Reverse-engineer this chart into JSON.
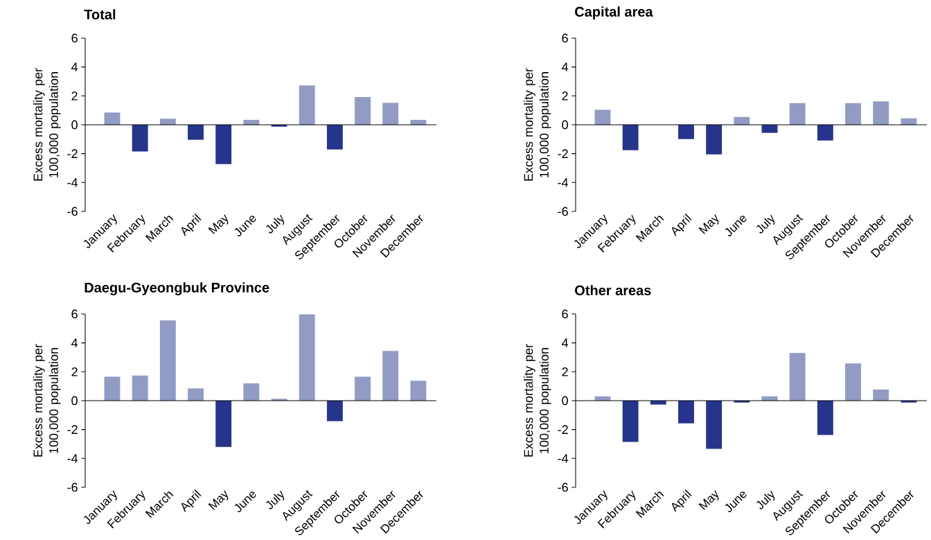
{
  "chart_data": [
    {
      "type": "bar",
      "title": "Total",
      "ylabel": "Excess mortality per 100,000 population",
      "categories": [
        "January",
        "February",
        "March",
        "April",
        "May",
        "June",
        "July",
        "August",
        "September",
        "October",
        "November",
        "December"
      ],
      "values": [
        0.85,
        -1.85,
        0.42,
        -1.04,
        -2.72,
        0.34,
        -0.13,
        2.72,
        -1.71,
        1.92,
        1.52,
        0.34
      ],
      "colors": [
        "#929bc4",
        "#27348b",
        "#929bc4",
        "#27348b",
        "#27348b",
        "#929bc4",
        "#27348b",
        "#929bc4",
        "#27348b",
        "#929bc4",
        "#929bc4",
        "#929bc4"
      ],
      "ylim": [
        -6,
        6
      ],
      "yticks": [
        -6,
        -4,
        -2,
        0,
        2,
        4,
        6
      ]
    },
    {
      "type": "bar",
      "title": "Capital area",
      "ylabel": "Excess mortality per 100,000 population",
      "categories": [
        "January",
        "February",
        "March",
        "April",
        "May",
        "June",
        "July",
        "August",
        "September",
        "October",
        "November",
        "December"
      ],
      "values": [
        1.04,
        -1.76,
        0,
        -0.99,
        -2.05,
        0.54,
        -0.56,
        1.5,
        -1.09,
        1.5,
        1.62,
        0.45
      ],
      "colors": [
        "#929bc4",
        "#27348b",
        "#929bc4",
        "#27348b",
        "#27348b",
        "#929bc4",
        "#27348b",
        "#929bc4",
        "#27348b",
        "#929bc4",
        "#929bc4",
        "#929bc4"
      ],
      "ylim": [
        -6,
        6
      ],
      "yticks": [
        -6,
        -4,
        -2,
        0,
        2,
        4,
        6
      ]
    },
    {
      "type": "bar",
      "title": "Daegu-Gyeongbuk Province",
      "ylabel": "Excess mortality per 100,000 population",
      "categories": [
        "January",
        "February",
        "March",
        "April",
        "May",
        "June",
        "July",
        "August",
        "September",
        "October",
        "November",
        "December"
      ],
      "values": [
        1.66,
        1.74,
        5.55,
        0.85,
        -3.2,
        1.2,
        0.13,
        5.98,
        -1.42,
        1.66,
        3.44,
        1.38
      ],
      "colors": [
        "#929bc4",
        "#929bc4",
        "#929bc4",
        "#929bc4",
        "#27348b",
        "#929bc4",
        "#929bc4",
        "#929bc4",
        "#27348b",
        "#929bc4",
        "#929bc4",
        "#929bc4"
      ],
      "ylim": [
        -6,
        6
      ],
      "yticks": [
        -6,
        -4,
        -2,
        0,
        2,
        4,
        6
      ]
    },
    {
      "type": "bar",
      "title": "Other areas",
      "ylabel": "Excess mortality per 100,000 population",
      "categories": [
        "January",
        "February",
        "March",
        "April",
        "May",
        "June",
        "July",
        "August",
        "September",
        "October",
        "November",
        "December"
      ],
      "values": [
        0.3,
        -2.86,
        -0.27,
        -1.57,
        -3.34,
        -0.13,
        0.3,
        3.3,
        -2.38,
        2.58,
        0.77,
        -0.13
      ],
      "colors": [
        "#929bc4",
        "#27348b",
        "#27348b",
        "#27348b",
        "#27348b",
        "#27348b",
        "#929bc4",
        "#929bc4",
        "#27348b",
        "#929bc4",
        "#929bc4",
        "#27348b"
      ],
      "ylim": [
        -6,
        6
      ],
      "yticks": [
        -6,
        -4,
        -2,
        0,
        2,
        4,
        6
      ]
    }
  ]
}
